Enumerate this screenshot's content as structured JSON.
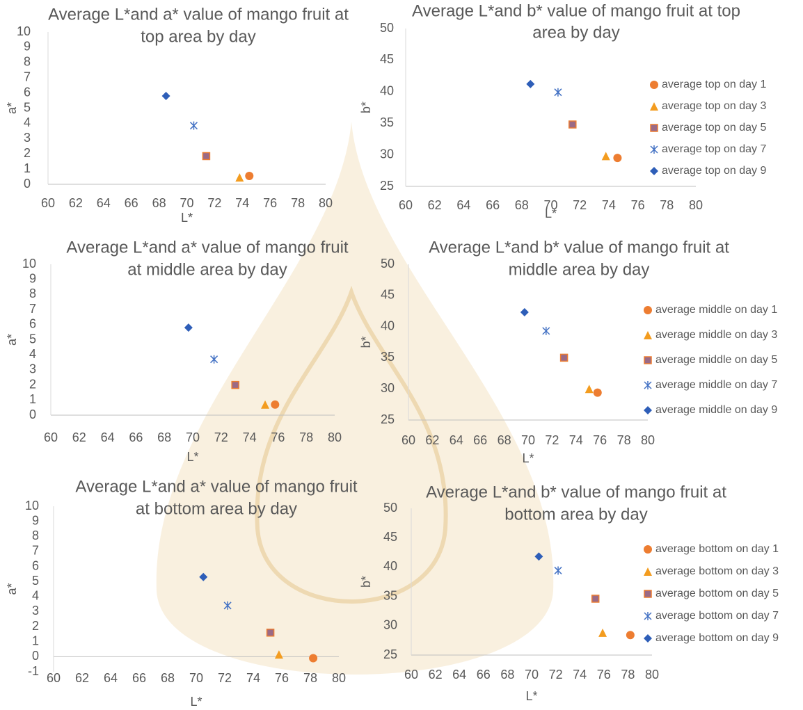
{
  "chart_data": [
    {
      "type": "scatter",
      "title": [
        "Average L*and a* value of mango fruit at",
        "top area by day"
      ],
      "xlabel": "L*",
      "ylabel": "a*",
      "xlim": [
        60,
        80
      ],
      "xticks": [
        60,
        62,
        64,
        66,
        68,
        70,
        72,
        74,
        76,
        78,
        80
      ],
      "ylim": [
        0,
        10
      ],
      "yticks": [
        0,
        1,
        2,
        3,
        4,
        5,
        6,
        7,
        8,
        9,
        10
      ],
      "series": [
        {
          "color": "#ED7D31",
          "marker": "circle",
          "x": [
            74.5
          ],
          "values": [
            0.55
          ]
        },
        {
          "color": "#F39C1F",
          "marker": "triangle",
          "x": [
            73.8
          ],
          "values": [
            0.45
          ]
        },
        {
          "color": "#9B6A86",
          "marker": "square",
          "x": [
            71.4
          ],
          "values": [
            1.85
          ]
        },
        {
          "color": "#4472C4",
          "marker": "star",
          "x": [
            70.5
          ],
          "values": [
            3.85
          ]
        },
        {
          "color": "#2E5EB8",
          "marker": "diamond",
          "x": [
            68.5
          ],
          "values": [
            5.8
          ]
        }
      ]
    },
    {
      "type": "scatter",
      "title": [
        "Average L*and b* value of mango fruit at top",
        "area by day"
      ],
      "xlabel": "L*",
      "ylabel": "b*",
      "xlim": [
        60,
        80
      ],
      "xticks": [
        60,
        62,
        64,
        66,
        68,
        70,
        72,
        74,
        76,
        78,
        80
      ],
      "ylim": [
        25,
        50
      ],
      "yticks": [
        25,
        30,
        35,
        40,
        45,
        50
      ],
      "series": [
        {
          "name": "average top on day 1",
          "color": "#ED7D31",
          "marker": "circle",
          "x": [
            74.6
          ],
          "values": [
            29.5
          ]
        },
        {
          "name": "average top on day 3",
          "color": "#F39C1F",
          "marker": "triangle",
          "x": [
            73.8
          ],
          "values": [
            29.8
          ]
        },
        {
          "name": "average top on day 5",
          "color": "#9B6A86",
          "marker": "square",
          "x": [
            71.5
          ],
          "values": [
            34.8
          ]
        },
        {
          "name": "average top on day 7",
          "color": "#4472C4",
          "marker": "star",
          "x": [
            70.5
          ],
          "values": [
            39.9
          ]
        },
        {
          "name": "average top on day 9",
          "color": "#2E5EB8",
          "marker": "diamond",
          "x": [
            68.6
          ],
          "values": [
            41.2
          ]
        }
      ]
    },
    {
      "type": "scatter",
      "title": [
        "Average L*and a* value of mango fruit",
        "at middle area by day"
      ],
      "xlabel": "L*",
      "ylabel": "a*",
      "xlim": [
        60,
        80
      ],
      "xticks": [
        60,
        62,
        64,
        66,
        68,
        70,
        72,
        74,
        76,
        78,
        80
      ],
      "ylim": [
        0,
        10
      ],
      "yticks": [
        0,
        1,
        2,
        3,
        4,
        5,
        6,
        7,
        8,
        9,
        10
      ],
      "series": [
        {
          "color": "#ED7D31",
          "marker": "circle",
          "x": [
            75.8
          ],
          "values": [
            0.7
          ]
        },
        {
          "color": "#F39C1F",
          "marker": "triangle",
          "x": [
            75.1
          ],
          "values": [
            0.7
          ]
        },
        {
          "color": "#9B6A86",
          "marker": "square",
          "x": [
            73.0
          ],
          "values": [
            2.0
          ]
        },
        {
          "color": "#4472C4",
          "marker": "star",
          "x": [
            71.5
          ],
          "values": [
            3.7
          ]
        },
        {
          "color": "#2E5EB8",
          "marker": "diamond",
          "x": [
            69.7
          ],
          "values": [
            5.8
          ]
        }
      ]
    },
    {
      "type": "scatter",
      "title": [
        "Average L*and b* value of mango fruit at",
        "middle area by day"
      ],
      "xlabel": "L*",
      "ylabel": "b*",
      "xlim": [
        60,
        80
      ],
      "xticks": [
        60,
        62,
        64,
        66,
        68,
        70,
        72,
        74,
        76,
        78,
        80
      ],
      "ylim": [
        25,
        50
      ],
      "yticks": [
        25,
        30,
        35,
        40,
        45,
        50
      ],
      "series": [
        {
          "name": "average middle on day 1",
          "color": "#ED7D31",
          "marker": "circle",
          "x": [
            75.8
          ],
          "values": [
            29.4
          ]
        },
        {
          "name": "average middle on day 3",
          "color": "#F39C1F",
          "marker": "triangle",
          "x": [
            75.1
          ],
          "values": [
            30.0
          ]
        },
        {
          "name": "average middle on day 5",
          "color": "#9B6A86",
          "marker": "square",
          "x": [
            73.0
          ],
          "values": [
            35.0
          ]
        },
        {
          "name": "average middle on day 7",
          "color": "#4472C4",
          "marker": "star",
          "x": [
            71.5
          ],
          "values": [
            39.3
          ]
        },
        {
          "name": "average middle on day 9",
          "color": "#2E5EB8",
          "marker": "diamond",
          "x": [
            69.7
          ],
          "values": [
            42.3
          ]
        }
      ]
    },
    {
      "type": "scatter",
      "title": [
        "Average L*and a* value of mango fruit",
        "at bottom area by day"
      ],
      "xlabel": "L*",
      "ylabel": "a*",
      "xlim": [
        60,
        80
      ],
      "xticks": [
        60,
        62,
        64,
        66,
        68,
        70,
        72,
        74,
        76,
        78,
        80
      ],
      "ylim": [
        -1,
        10
      ],
      "yticks": [
        -1,
        0,
        1,
        2,
        3,
        4,
        5,
        6,
        7,
        8,
        9,
        10
      ],
      "series": [
        {
          "color": "#ED7D31",
          "marker": "circle",
          "x": [
            78.2
          ],
          "values": [
            -0.1
          ]
        },
        {
          "color": "#F39C1F",
          "marker": "triangle",
          "x": [
            75.8
          ],
          "values": [
            0.15
          ]
        },
        {
          "color": "#9B6A86",
          "marker": "square",
          "x": [
            75.2
          ],
          "values": [
            1.6
          ]
        },
        {
          "color": "#4472C4",
          "marker": "star",
          "x": [
            72.2
          ],
          "values": [
            3.4
          ]
        },
        {
          "color": "#2E5EB8",
          "marker": "diamond",
          "x": [
            70.5
          ],
          "values": [
            5.3
          ]
        }
      ]
    },
    {
      "type": "scatter",
      "title": [
        "Average L*and b* value of mango fruit at",
        "bottom area by day"
      ],
      "xlabel": "L*",
      "ylabel": "b*",
      "xlim": [
        60,
        80
      ],
      "xticks": [
        60,
        62,
        64,
        66,
        68,
        70,
        72,
        74,
        76,
        78,
        80
      ],
      "ylim": [
        25,
        50
      ],
      "yticks": [
        25,
        30,
        35,
        40,
        45,
        50
      ],
      "series": [
        {
          "name": "average bottom on day 1",
          "color": "#ED7D31",
          "marker": "circle",
          "x": [
            78.2
          ],
          "values": [
            28.4
          ]
        },
        {
          "name": "average bottom on day 3",
          "color": "#F39C1F",
          "marker": "triangle",
          "x": [
            75.9
          ],
          "values": [
            28.8
          ]
        },
        {
          "name": "average bottom on day 5",
          "color": "#9B6A86",
          "marker": "square",
          "x": [
            75.3
          ],
          "values": [
            34.6
          ]
        },
        {
          "name": "average bottom on day 7",
          "color": "#4472C4",
          "marker": "star",
          "x": [
            72.2
          ],
          "values": [
            39.4
          ]
        },
        {
          "name": "average bottom on day 9",
          "color": "#2E5EB8",
          "marker": "diamond",
          "x": [
            70.6
          ],
          "values": [
            41.8
          ]
        }
      ]
    }
  ]
}
